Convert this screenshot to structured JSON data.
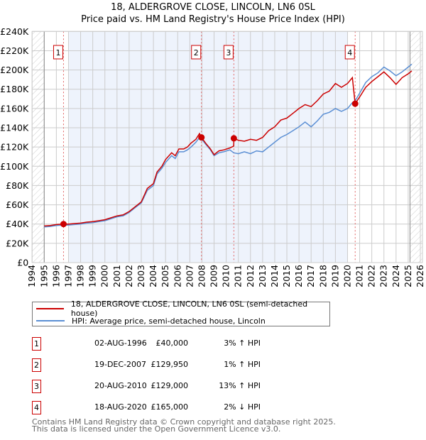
{
  "chart_data": {
    "type": "line",
    "title": "18, ALDERGROVE CLOSE, LINCOLN, LN6 0SL",
    "subtitle": "Price paid vs. HM Land Registry's House Price Index (HPI)",
    "xlabel": "",
    "ylabel": "",
    "xlim": [
      1994,
      2026
    ],
    "ylim": [
      0,
      240000
    ],
    "x_ticks": [
      "1994",
      "1995",
      "1996",
      "1997",
      "1998",
      "1999",
      "2000",
      "2001",
      "2002",
      "2003",
      "2004",
      "2005",
      "2006",
      "2007",
      "2008",
      "2009",
      "2010",
      "2011",
      "2012",
      "2013",
      "2014",
      "2015",
      "2016",
      "2017",
      "2018",
      "2019",
      "2020",
      "2021",
      "2022",
      "2023",
      "2024",
      "2025",
      "2026"
    ],
    "y_ticks": [
      {
        "value": 0,
        "label": "£0"
      },
      {
        "value": 20000,
        "label": "£20K"
      },
      {
        "value": 40000,
        "label": "£40K"
      },
      {
        "value": 60000,
        "label": "£60K"
      },
      {
        "value": 80000,
        "label": "£80K"
      },
      {
        "value": 100000,
        "label": "£100K"
      },
      {
        "value": 120000,
        "label": "£120K"
      },
      {
        "value": 140000,
        "label": "£140K"
      },
      {
        "value": 160000,
        "label": "£160K"
      },
      {
        "value": 180000,
        "label": "£180K"
      },
      {
        "value": 200000,
        "label": "£200K"
      },
      {
        "value": 220000,
        "label": "£220K"
      },
      {
        "value": 240000,
        "label": "£240K"
      }
    ],
    "grid": true,
    "colors": {
      "property": "#cc0000",
      "hpi": "#5b8fd4",
      "shade": "#eef3fc"
    },
    "shaded_range": [
      1997,
      2020
    ],
    "hatched_before": 1995,
    "hatched_after": 2025.15,
    "series": [
      {
        "name": "18, ALDERGROVE CLOSE, LINCOLN, LN6 0SL (semi-detached house)",
        "color": "#cc0000",
        "points": [
          [
            1995,
            38000
          ],
          [
            1995.5,
            38500
          ],
          [
            1996,
            39500
          ],
          [
            1996.59,
            40000
          ],
          [
            1997,
            40000
          ],
          [
            1997.5,
            40500
          ],
          [
            1998,
            41000
          ],
          [
            1998.5,
            42000
          ],
          [
            1999,
            42500
          ],
          [
            1999.5,
            43500
          ],
          [
            2000,
            44500
          ],
          [
            2000.5,
            46500
          ],
          [
            2001,
            48500
          ],
          [
            2001.5,
            49500
          ],
          [
            2002,
            53000
          ],
          [
            2002.5,
            58000
          ],
          [
            2003,
            63000
          ],
          [
            2003.5,
            77000
          ],
          [
            2004,
            82000
          ],
          [
            2004.3,
            94000
          ],
          [
            2004.7,
            100000
          ],
          [
            2005,
            107000
          ],
          [
            2005.5,
            114000
          ],
          [
            2005.8,
            111000
          ],
          [
            2006.1,
            118000
          ],
          [
            2006.5,
            118000
          ],
          [
            2006.8,
            120000
          ],
          [
            2007.1,
            124000
          ],
          [
            2007.5,
            128000
          ],
          [
            2007.8,
            134000
          ],
          [
            2007.96,
            129950
          ],
          [
            2008.3,
            124000
          ],
          [
            2008.7,
            118000
          ],
          [
            2009,
            112000
          ],
          [
            2009.4,
            116000
          ],
          [
            2009.8,
            117000
          ],
          [
            2010.3,
            119000
          ],
          [
            2010.62,
            121000
          ],
          [
            2010.63,
            129000
          ],
          [
            2011,
            127000
          ],
          [
            2011.5,
            126000
          ],
          [
            2012,
            128000
          ],
          [
            2012.5,
            127000
          ],
          [
            2013,
            130000
          ],
          [
            2013.5,
            137000
          ],
          [
            2014,
            141000
          ],
          [
            2014.5,
            148000
          ],
          [
            2015,
            150000
          ],
          [
            2015.5,
            155000
          ],
          [
            2016,
            160000
          ],
          [
            2016.5,
            164000
          ],
          [
            2017,
            162000
          ],
          [
            2017.5,
            168000
          ],
          [
            2018,
            175000
          ],
          [
            2018.5,
            178000
          ],
          [
            2019,
            186000
          ],
          [
            2019.5,
            182000
          ],
          [
            2020,
            186000
          ],
          [
            2020.4,
            192000
          ],
          [
            2020.63,
            165000
          ],
          [
            2021,
            172000
          ],
          [
            2021.5,
            182000
          ],
          [
            2022,
            188000
          ],
          [
            2022.5,
            193000
          ],
          [
            2023,
            198000
          ],
          [
            2023.5,
            192000
          ],
          [
            2024,
            185000
          ],
          [
            2024.5,
            192000
          ],
          [
            2025,
            196000
          ],
          [
            2025.3,
            199000
          ]
        ]
      },
      {
        "name": "HPI: Average price, semi-detached house, Lincoln",
        "color": "#5b8fd4",
        "points": [
          [
            1995,
            37000
          ],
          [
            1995.5,
            37500
          ],
          [
            1996,
            38500
          ],
          [
            1996.59,
            39000
          ],
          [
            1997,
            39000
          ],
          [
            1997.5,
            39500
          ],
          [
            1998,
            40000
          ],
          [
            1998.5,
            41000
          ],
          [
            1999,
            41500
          ],
          [
            1999.5,
            42500
          ],
          [
            2000,
            43500
          ],
          [
            2000.5,
            45500
          ],
          [
            2001,
            47500
          ],
          [
            2001.5,
            48500
          ],
          [
            2002,
            52000
          ],
          [
            2002.5,
            57000
          ],
          [
            2003,
            62000
          ],
          [
            2003.5,
            75000
          ],
          [
            2004,
            80000
          ],
          [
            2004.3,
            92000
          ],
          [
            2004.7,
            98000
          ],
          [
            2005,
            104000
          ],
          [
            2005.5,
            111000
          ],
          [
            2005.8,
            108000
          ],
          [
            2006.1,
            115000
          ],
          [
            2006.5,
            115000
          ],
          [
            2006.8,
            117000
          ],
          [
            2007.1,
            120000
          ],
          [
            2007.5,
            125000
          ],
          [
            2007.8,
            130000
          ],
          [
            2007.96,
            128500
          ],
          [
            2008.3,
            123000
          ],
          [
            2008.7,
            117000
          ],
          [
            2009,
            111000
          ],
          [
            2009.4,
            114000
          ],
          [
            2009.8,
            115000
          ],
          [
            2010.3,
            117000
          ],
          [
            2010.62,
            114000
          ],
          [
            2011,
            113000
          ],
          [
            2011.5,
            115000
          ],
          [
            2012,
            113000
          ],
          [
            2012.5,
            116000
          ],
          [
            2013,
            115000
          ],
          [
            2013.5,
            120000
          ],
          [
            2014,
            125000
          ],
          [
            2014.5,
            130000
          ],
          [
            2015,
            133000
          ],
          [
            2015.5,
            137000
          ],
          [
            2016,
            141000
          ],
          [
            2016.5,
            146000
          ],
          [
            2017,
            141000
          ],
          [
            2017.5,
            147000
          ],
          [
            2018,
            154000
          ],
          [
            2018.5,
            156000
          ],
          [
            2019,
            160000
          ],
          [
            2019.5,
            157000
          ],
          [
            2020,
            160000
          ],
          [
            2020.4,
            166000
          ],
          [
            2020.63,
            168000
          ],
          [
            2021,
            176000
          ],
          [
            2021.5,
            187000
          ],
          [
            2022,
            193000
          ],
          [
            2022.5,
            197000
          ],
          [
            2023,
            203000
          ],
          [
            2023.5,
            199000
          ],
          [
            2024,
            194000
          ],
          [
            2024.5,
            198000
          ],
          [
            2025,
            203000
          ],
          [
            2025.3,
            206000
          ]
        ]
      }
    ],
    "sales": [
      {
        "num": "1",
        "x": 1996.59,
        "value": 40000
      },
      {
        "num": "2",
        "x": 2007.96,
        "value": 129950
      },
      {
        "num": "3",
        "x": 2010.63,
        "value": 129000
      },
      {
        "num": "4",
        "x": 2020.63,
        "value": 165000
      }
    ]
  },
  "legend": {
    "property": "18, ALDERGROVE CLOSE, LINCOLN, LN6 0SL (semi-detached house)",
    "hpi": "HPI: Average price, semi-detached house, Lincoln"
  },
  "table": [
    {
      "num": "1",
      "date": "02-AUG-1996",
      "price": "£40,000",
      "hpi": "3% ↑ HPI"
    },
    {
      "num": "2",
      "date": "19-DEC-2007",
      "price": "£129,950",
      "hpi": "1% ↑ HPI"
    },
    {
      "num": "3",
      "date": "20-AUG-2010",
      "price": "£129,000",
      "hpi": "13% ↑ HPI"
    },
    {
      "num": "4",
      "date": "18-AUG-2020",
      "price": "£165,000",
      "hpi": "2% ↓ HPI"
    }
  ],
  "footer": {
    "line1": "Contains HM Land Registry data © Crown copyright and database right 2025.",
    "line2": "This data is licensed under the Open Government Licence v3.0."
  }
}
